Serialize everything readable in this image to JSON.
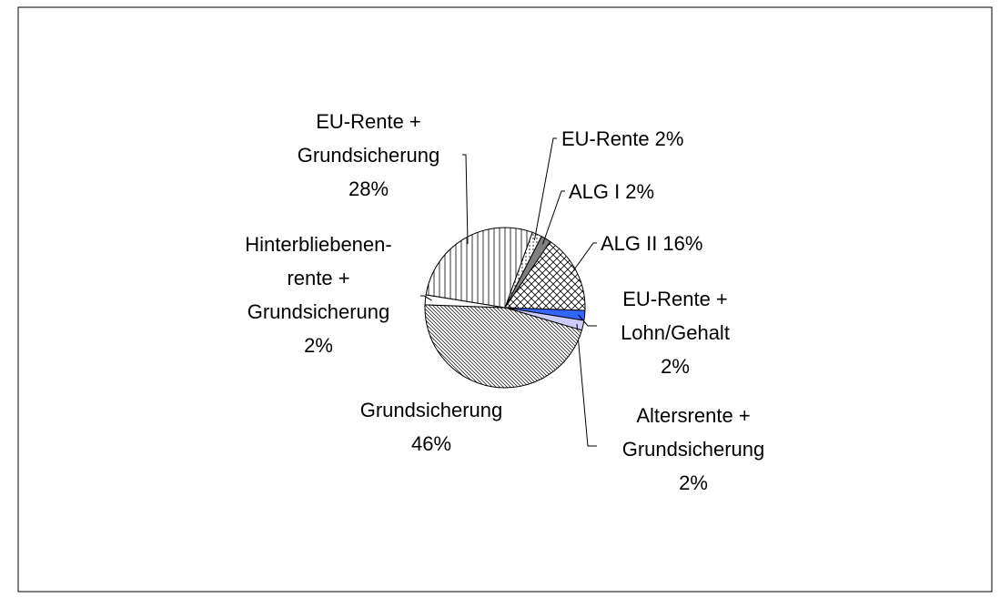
{
  "chart_data": {
    "type": "pie",
    "categories": [
      "EU-Rente",
      "ALG I",
      "ALG II",
      "EU-Rente +\nLohn/Gehalt",
      "Altersrente +\nGrundsicherung",
      "Grundsicherung",
      "Hinterbliebenen-\nrente +\nGrundsicherung",
      "EU-Rente +\nGrundsicherung"
    ],
    "values": [
      2,
      2,
      16,
      2,
      2,
      46,
      2,
      28
    ],
    "value_labels": [
      "2%",
      "2%",
      "16%",
      "2%",
      "2%",
      "46%",
      "2%",
      "28%"
    ],
    "fills": [
      "dots",
      "#808080",
      "crosshatch",
      "#3366ff",
      "#ccccff",
      "diagonal",
      "#ffffff",
      "vertical"
    ]
  }
}
